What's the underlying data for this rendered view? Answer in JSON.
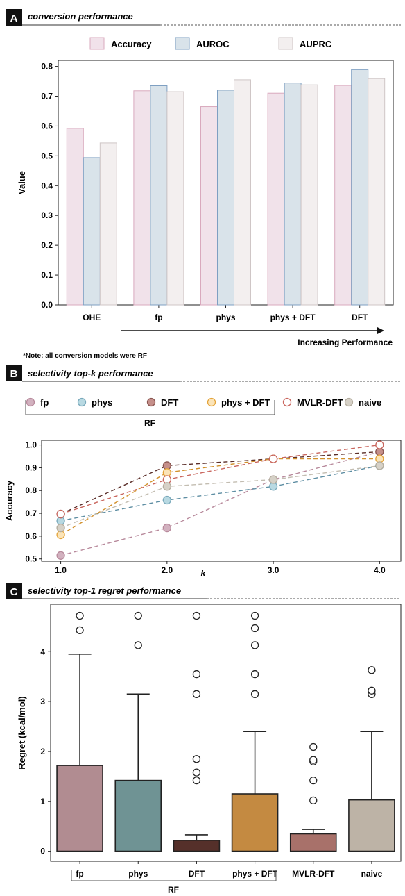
{
  "panels": {
    "A": {
      "letter": "A",
      "title": "conversion performance",
      "note": "*Note: all conversion models were RF",
      "arrow_label": "Increasing Performance"
    },
    "B": {
      "letter": "B",
      "title": "selectivity top-k performance",
      "rf_group_label": "RF"
    },
    "C": {
      "letter": "C",
      "title": "selectivity top-1 regret performance",
      "rf_group_label": "RF"
    }
  },
  "chart_data": [
    {
      "id": "A",
      "type": "bar",
      "categories": [
        "OHE",
        "fp",
        "phys",
        "phys + DFT",
        "DFT"
      ],
      "series": [
        {
          "name": "Accuracy",
          "values": [
            0.592,
            0.718,
            0.665,
            0.71,
            0.736
          ],
          "fill": "#f1e2ea",
          "stroke": "#d9a9bd"
        },
        {
          "name": "AUROC",
          "values": [
            0.494,
            0.735,
            0.72,
            0.744,
            0.789
          ],
          "fill": "#d9e3ea",
          "stroke": "#7e9fc2"
        },
        {
          "name": "AUPRC",
          "values": [
            0.543,
            0.715,
            0.755,
            0.738,
            0.759
          ],
          "fill": "#f3efef",
          "stroke": "#cfc6c6"
        }
      ],
      "ylabel": "Value",
      "ylim": [
        0.0,
        0.82
      ],
      "yticks": [
        "0.0",
        "0.1",
        "0.2",
        "0.3",
        "0.4",
        "0.5",
        "0.6",
        "0.7",
        "0.8"
      ]
    },
    {
      "id": "B",
      "type": "line",
      "x": [
        1.0,
        2.0,
        3.0,
        4.0
      ],
      "xticks": [
        "1.0",
        "2.0",
        "3.0",
        "4.0"
      ],
      "xlabel": "k",
      "ylabel": "Accuracy",
      "ylim": [
        0.49,
        1.02
      ],
      "yticks": [
        "0.5",
        "0.6",
        "0.7",
        "0.8",
        "0.9",
        "1.0"
      ],
      "series": [
        {
          "name": "fp",
          "values": [
            0.515,
            0.636,
            0.848,
            0.97
          ],
          "fill": "#d2b1bf",
          "stroke": "#b88a9c",
          "line": "#b88a9c"
        },
        {
          "name": "phys",
          "values": [
            0.667,
            0.758,
            0.818,
            0.909
          ],
          "fill": "#b8d9e2",
          "stroke": "#79a9bb",
          "line": "#5e8ea3"
        },
        {
          "name": "DFT",
          "values": [
            0.697,
            0.909,
            0.939,
            0.97
          ],
          "fill": "#c58f8a",
          "stroke": "#8a5651",
          "line": "#5a2d28"
        },
        {
          "name": "phys + DFT",
          "values": [
            0.606,
            0.879,
            0.939,
            0.939
          ],
          "fill": "#fbe4b8",
          "stroke": "#e4a43a",
          "line": "#d2902b"
        },
        {
          "name": "MVLR-DFT",
          "values": [
            0.697,
            0.848,
            0.939,
            1.0
          ],
          "fill": "#ffffff",
          "stroke": "#c9665e",
          "line": "#c9665e"
        },
        {
          "name": "naive",
          "values": [
            0.636,
            0.818,
            0.848,
            0.909
          ],
          "fill": "#d6d1c7",
          "stroke": "#b4ad9f",
          "line": "#c3bdb1"
        }
      ]
    },
    {
      "id": "C",
      "type": "box",
      "categories": [
        "fp",
        "phys",
        "DFT",
        "phys + DFT",
        "MVLR-DFT",
        "naive"
      ],
      "ylabel": "Regret (kcal/mol)",
      "ylim": [
        -0.2,
        4.95
      ],
      "yticks": [
        "0",
        "1",
        "2",
        "3",
        "4"
      ],
      "boxes": [
        {
          "q1": 0.0,
          "median": 0.0,
          "q3": 1.72,
          "whisker_low": 0.0,
          "whisker_high": 3.95,
          "outliers": [
            4.43,
            4.72
          ],
          "fill": "#b18c91"
        },
        {
          "q1": 0.0,
          "median": 0.0,
          "q3": 1.42,
          "whisker_low": 0.0,
          "whisker_high": 3.15,
          "outliers": [
            4.13,
            4.72
          ],
          "fill": "#6f9394"
        },
        {
          "q1": 0.0,
          "median": 0.0,
          "q3": 0.22,
          "whisker_low": 0.0,
          "whisker_high": 0.33,
          "outliers": [
            1.42,
            1.58,
            1.85,
            3.15,
            3.55,
            4.72
          ],
          "fill": "#55302a"
        },
        {
          "q1": 0.0,
          "median": 0.0,
          "q3": 1.15,
          "whisker_low": 0.0,
          "whisker_high": 2.4,
          "outliers": [
            3.15,
            3.55,
            4.13,
            4.47,
            4.72
          ],
          "fill": "#c48a41"
        },
        {
          "q1": 0.0,
          "median": 0.0,
          "q3": 0.35,
          "whisker_low": 0.0,
          "whisker_high": 0.44,
          "outliers": [
            1.02,
            1.42,
            1.8,
            1.83,
            2.09
          ],
          "fill": "#a8716a"
        },
        {
          "q1": 0.0,
          "median": 0.0,
          "q3": 1.03,
          "whisker_low": 0.0,
          "whisker_high": 2.4,
          "outliers": [
            3.15,
            3.22,
            3.63
          ],
          "fill": "#bdb3a6"
        }
      ]
    }
  ]
}
